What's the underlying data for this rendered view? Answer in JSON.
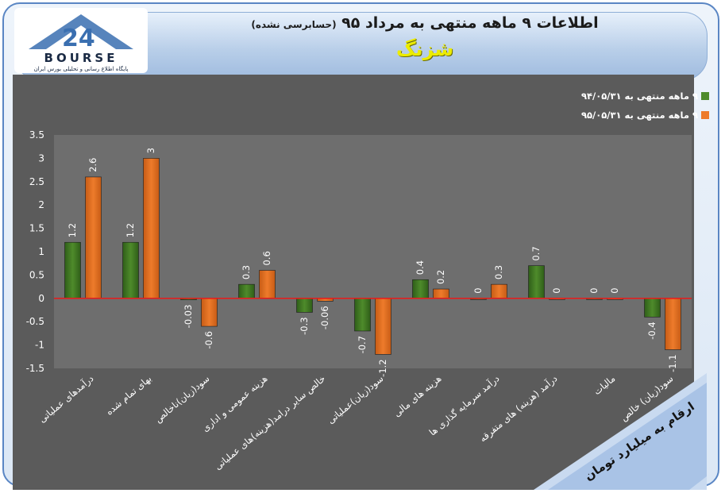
{
  "header": {
    "title": "اطلاعات ۹ ماهه منتهی به مرداد ۹۵",
    "subtitle": "(حسابرسی نشده)",
    "company": "شزنگ"
  },
  "logo": {
    "brand": "BOURSE",
    "tagline": "پایگاه اطلاع رسانی و تحلیلی بورس ایران"
  },
  "units_note": "ارقام به میلیارد تومان",
  "colors": {
    "series1": "#4e8b2b",
    "series2": "#ee7b2b",
    "zero_line": "#e02020",
    "plot_bg": "#6e6e6e",
    "outer_bg": "#5b5b5b"
  },
  "chart_data": {
    "type": "bar",
    "categories": [
      "درآمدهای عملیاتی",
      "بهای تمام شده",
      "سود(زیان)ناخالص",
      "هزینه عمومی و اداری",
      "خالص سایر درامد(هزینه)های عملیاتی",
      "سود(زیان)عملیاتی",
      "هزینه های مالی",
      "درآمد سرمایه گذاری ها",
      "درآمد (هزینه) های متفرقه",
      "مالیات",
      "سود(زیان) خالص"
    ],
    "series": [
      {
        "name": "۹ ماهه منتهی به ۹۴/۰۵/۳۱",
        "values": [
          1.2,
          1.2,
          -0.03,
          0.3,
          -0.3,
          -0.7,
          0.4,
          0,
          0.7,
          0,
          -0.4
        ],
        "labels": [
          "1.2",
          "1.2",
          "-0.03",
          "0.3",
          "-0.3",
          "-0.7",
          "0.4",
          "0",
          "0.7",
          "0",
          "-0.4"
        ]
      },
      {
        "name": "۹ ماهه منتهی به ۹۵/۰۵/۳۱",
        "values": [
          2.6,
          3,
          -0.6,
          0.6,
          -0.06,
          -1.2,
          0.2,
          0.3,
          0,
          0,
          -1.1
        ],
        "labels": [
          "2.6",
          "3",
          "-0.6",
          "0.6",
          "-0.06",
          "-1.2",
          "0.2",
          "0.3",
          "0",
          "0",
          "-1.1"
        ]
      }
    ],
    "y_ticks": [
      "3.5",
      "3",
      "2.5",
      "2",
      "1.5",
      "1",
      "0.5",
      "0",
      "-0.5",
      "-1",
      "-1.5"
    ],
    "ylim": [
      -1.5,
      3.5
    ],
    "grid": false,
    "legend_position": "top-right"
  }
}
